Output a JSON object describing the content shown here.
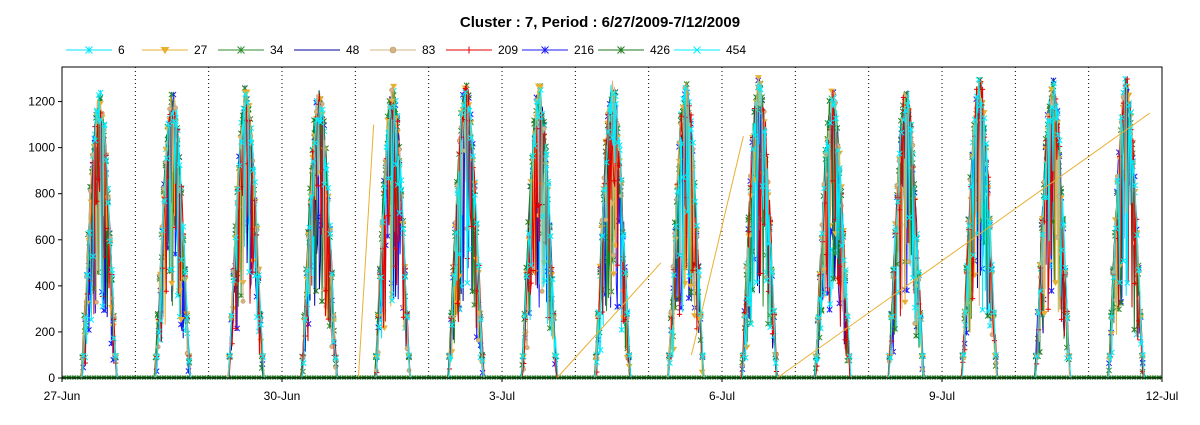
{
  "chart_data": {
    "type": "line",
    "title": "Cluster : 7, Period : 6/27/2009-7/12/2009",
    "xlabel": "",
    "ylabel": "",
    "ylim": [
      0,
      1350
    ],
    "yticks": [
      "0",
      "200",
      "400",
      "600",
      "800",
      "1000",
      "1200"
    ],
    "ytick_values": [
      0,
      200,
      400,
      600,
      800,
      1000,
      1200
    ],
    "xlim": [
      "2009-06-27",
      "2009-07-12"
    ],
    "xticks": [
      "27-Jun",
      "30-Jun",
      "3-Jul",
      "6-Jul",
      "9-Jul",
      "12-Jul"
    ],
    "xtick_values": [
      "2009-06-27",
      "2009-06-30",
      "2009-07-03",
      "2009-07-06",
      "2009-07-09",
      "2009-07-12"
    ],
    "grid": "vertical dotted daily",
    "legend": "top",
    "daily_peak_approx": [
      {
        "date": "2009-06-27",
        "peak": 1220
      },
      {
        "date": "2009-06-28",
        "peak": 1230
      },
      {
        "date": "2009-06-29",
        "peak": 1240
      },
      {
        "date": "2009-06-30",
        "peak": 1230
      },
      {
        "date": "2009-07-01",
        "peak": 1260
      },
      {
        "date": "2009-07-02",
        "peak": 1270
      },
      {
        "date": "2009-07-03",
        "peak": 1250
      },
      {
        "date": "2009-07-04",
        "peak": 1270
      },
      {
        "date": "2009-07-05",
        "peak": 1260
      },
      {
        "date": "2009-07-06",
        "peak": 1290
      },
      {
        "date": "2009-07-07",
        "peak": 1230
      },
      {
        "date": "2009-07-08",
        "peak": 1250
      },
      {
        "date": "2009-07-09",
        "peak": 1280
      },
      {
        "date": "2009-07-10",
        "peak": 1280
      },
      {
        "date": "2009-07-11",
        "peak": 1280
      }
    ],
    "series": [
      {
        "name": "6",
        "color": "#00e5ff",
        "marker": "x-star"
      },
      {
        "name": "27",
        "color": "#e8b030",
        "marker": "triangle-down"
      },
      {
        "name": "34",
        "color": "#2e8b2e",
        "marker": "x-star"
      },
      {
        "name": "48",
        "color": "#0000a0",
        "marker": "none"
      },
      {
        "name": "83",
        "color": "#d4b483",
        "marker": "circle"
      },
      {
        "name": "209",
        "color": "#e00000",
        "marker": "plus"
      },
      {
        "name": "216",
        "color": "#1a1aff",
        "marker": "x-star"
      },
      {
        "name": "426",
        "color": "#1e7a1e",
        "marker": "x-star"
      },
      {
        "name": "454",
        "color": "#00eeff",
        "marker": "x"
      }
    ],
    "annotations": [
      {
        "series": "27",
        "type": "straight gap line",
        "from": {
          "date": "2009-07-01 01:00",
          "value": 0
        },
        "to": {
          "date": "2009-07-01 06:00",
          "value": 1100
        }
      },
      {
        "series": "27",
        "type": "straight gap line",
        "from": {
          "date": "2009-07-03 18:00",
          "value": 0
        },
        "to": {
          "date": "2009-07-05 04:00",
          "value": 500
        }
      },
      {
        "series": "27",
        "type": "straight gap line",
        "from": {
          "date": "2009-07-05 14:00",
          "value": 100
        },
        "to": {
          "date": "2009-07-06 07:00",
          "value": 1050
        }
      },
      {
        "series": "27",
        "type": "straight gap line",
        "from": {
          "date": "2009-07-06 18:00",
          "value": 0
        },
        "to": {
          "date": "2009-07-11 20:00",
          "value": 1150
        }
      }
    ]
  }
}
